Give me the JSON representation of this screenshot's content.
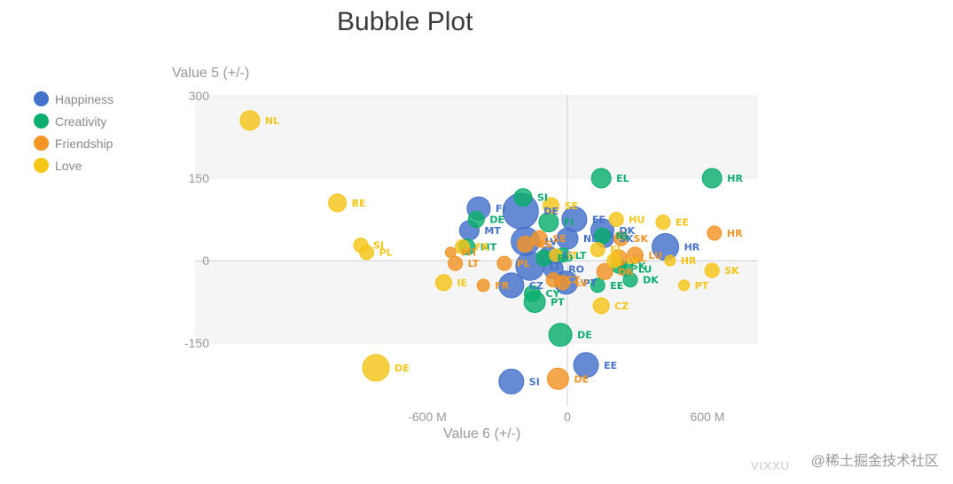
{
  "title": "Bubble Plot",
  "watermark": "@稀土掘金技术社区",
  "brand": "VIXXU",
  "chart_data": {
    "type": "scatter",
    "title": "Bubble Plot",
    "xlabel": "Value 6 (+/-)",
    "ylabel": "Value 5 (+/-)",
    "xlim": [
      -960000000,
      810000000
    ],
    "ylim": [
      -300000000,
      300000000
    ],
    "xticks": [
      {
        "value": -600000000,
        "label": "-600 M"
      },
      {
        "value": 0,
        "label": "0"
      },
      {
        "value": 600000000,
        "label": "600 M"
      }
    ],
    "yticks": [
      {
        "value": 300,
        "label": "300"
      },
      {
        "value": 150,
        "label": "150"
      },
      {
        "value": 0,
        "label": "0"
      },
      {
        "value": -150,
        "label": "-150"
      }
    ],
    "grid": true,
    "legend_position": "left",
    "series": [
      {
        "name": "Happiness",
        "color": "#4472CA",
        "points": [
          {
            "label": "SI",
            "x": -240,
            "y": -220,
            "size": 14
          },
          {
            "label": "EE",
            "x": 80,
            "y": -190,
            "size": 14
          },
          {
            "label": "HR",
            "x": 420,
            "y": 25,
            "size": 15
          },
          {
            "label": "DK",
            "x": 150,
            "y": 55,
            "size": 13
          },
          {
            "label": "SK",
            "x": 160,
            "y": 40,
            "size": 10
          },
          {
            "label": "EE",
            "x": 30,
            "y": 75,
            "size": 14
          },
          {
            "label": "NL",
            "x": 0,
            "y": 40,
            "size": 12
          },
          {
            "label": "PT",
            "x": -5,
            "y": -40,
            "size": 13
          },
          {
            "label": "CZ",
            "x": -240,
            "y": -45,
            "size": 14
          },
          {
            "label": "DE",
            "x": -200,
            "y": 90,
            "size": 20
          },
          {
            "label": "FI",
            "x": -380,
            "y": 95,
            "size": 13
          },
          {
            "label": "MT",
            "x": -420,
            "y": 55,
            "size": 11
          },
          {
            "label": "LT",
            "x": -160,
            "y": -10,
            "size": 16
          },
          {
            "label": "LV",
            "x": -180,
            "y": 35,
            "size": 16
          },
          {
            "label": "RO",
            "x": -60,
            "y": -15,
            "size": 11
          },
          {
            "label": "IE",
            "x": -80,
            "y": 10,
            "size": 10
          }
        ]
      },
      {
        "name": "Creativity",
        "color": "#0BAE6D",
        "points": [
          {
            "label": "EL",
            "x": 145,
            "y": 150,
            "size": 11
          },
          {
            "label": "HR",
            "x": 620,
            "y": 150,
            "size": 11
          },
          {
            "label": "SI",
            "x": -190,
            "y": 115,
            "size": 10
          },
          {
            "label": "DE",
            "x": -30,
            "y": -135,
            "size": 13
          },
          {
            "label": "DK",
            "x": 270,
            "y": -35,
            "size": 8
          },
          {
            "label": "EE",
            "x": 130,
            "y": -45,
            "size": 8
          },
          {
            "label": "SK",
            "x": 220,
            "y": -10,
            "size": 8
          },
          {
            "label": "LU",
            "x": 250,
            "y": -15,
            "size": 8
          },
          {
            "label": "FI",
            "x": -80,
            "y": 70,
            "size": 11
          },
          {
            "label": "CY",
            "x": -150,
            "y": -60,
            "size": 9
          },
          {
            "label": "PT",
            "x": -140,
            "y": -75,
            "size": 12
          },
          {
            "label": "NL",
            "x": 150,
            "y": 45,
            "size": 9
          },
          {
            "label": "RO",
            "x": -100,
            "y": 5,
            "size": 9
          },
          {
            "label": "MT",
            "x": -430,
            "y": 25,
            "size": 9
          },
          {
            "label": "DE",
            "x": -390,
            "y": 75,
            "size": 9
          },
          {
            "label": "LT",
            "x": -20,
            "y": 10,
            "size": 8
          }
        ]
      },
      {
        "name": "Friendship",
        "color": "#F39426",
        "points": [
          {
            "label": "HR",
            "x": 630,
            "y": 50,
            "size": 8
          },
          {
            "label": "DE",
            "x": -40,
            "y": -215,
            "size": 12
          },
          {
            "label": "FR",
            "x": -360,
            "y": -45,
            "size": 7
          },
          {
            "label": "LU",
            "x": 290,
            "y": 10,
            "size": 9
          },
          {
            "label": "NL",
            "x": 220,
            "y": 5,
            "size": 9
          },
          {
            "label": "SK",
            "x": 230,
            "y": 40,
            "size": 8
          },
          {
            "label": "LT",
            "x": -480,
            "y": -5,
            "size": 8
          },
          {
            "label": "MT",
            "x": -500,
            "y": 15,
            "size": 6
          },
          {
            "label": "ES",
            "x": -180,
            "y": 30,
            "size": 9
          },
          {
            "label": "SE",
            "x": -120,
            "y": 40,
            "size": 9
          },
          {
            "label": "DK",
            "x": 160,
            "y": -20,
            "size": 9
          },
          {
            "label": "CZ",
            "x": -60,
            "y": -35,
            "size": 8
          },
          {
            "label": "PL",
            "x": -270,
            "y": -5,
            "size": 8
          },
          {
            "label": "LV",
            "x": -20,
            "y": -40,
            "size": 8
          }
        ]
      },
      {
        "name": "Love",
        "color": "#F5C518",
        "points": [
          {
            "label": "NL",
            "x": -1360,
            "y": 255,
            "size": 11
          },
          {
            "label": "BE",
            "x": -985,
            "y": 105,
            "size": 10
          },
          {
            "label": "SI",
            "x": -885,
            "y": 28,
            "size": 8
          },
          {
            "label": "PL",
            "x": -860,
            "y": 15,
            "size": 8
          },
          {
            "label": "IE",
            "x": -530,
            "y": -40,
            "size": 9
          },
          {
            "label": "DE",
            "x": -820,
            "y": -195,
            "size": 15
          },
          {
            "label": "SE",
            "x": -70,
            "y": 100,
            "size": 9
          },
          {
            "label": "HU",
            "x": 210,
            "y": 75,
            "size": 8
          },
          {
            "label": "EE",
            "x": 410,
            "y": 70,
            "size": 8
          },
          {
            "label": "HR",
            "x": 440,
            "y": 0,
            "size": 6
          },
          {
            "label": "SK",
            "x": 620,
            "y": -18,
            "size": 8
          },
          {
            "label": "PT",
            "x": 500,
            "y": -45,
            "size": 6
          },
          {
            "label": "CZ",
            "x": 145,
            "y": -82,
            "size": 9
          },
          {
            "label": "FR",
            "x": -450,
            "y": 25,
            "size": 8
          },
          {
            "label": "EL",
            "x": 130,
            "y": 20,
            "size": 8
          },
          {
            "label": "LV",
            "x": 200,
            "y": 0,
            "size": 8
          },
          {
            "label": "IT",
            "x": -50,
            "y": 10,
            "size": 7
          }
        ]
      }
    ]
  }
}
